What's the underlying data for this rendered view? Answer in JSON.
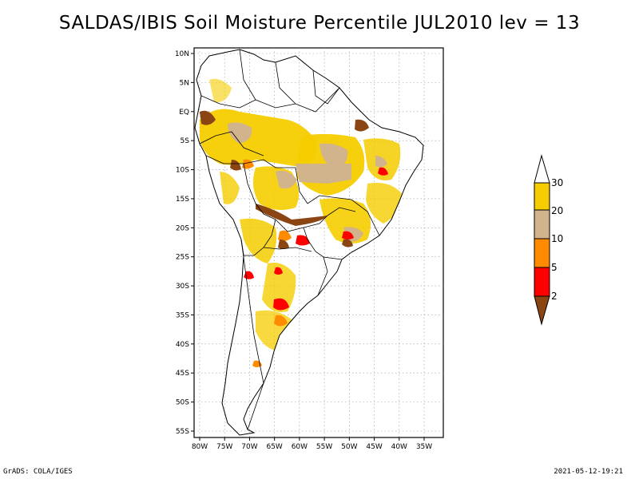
{
  "title": "SALDAS/IBIS Soil Moisture Percentile JUL2010 lev = 13",
  "map": {
    "lon_range": [
      -80,
      -30
    ],
    "lat_range": [
      -56,
      11
    ],
    "lat_ticks": [
      {
        "lat": 10,
        "label": "10N"
      },
      {
        "lat": 5,
        "label": "5N"
      },
      {
        "lat": 0,
        "label": "EQ"
      },
      {
        "lat": -5,
        "label": "5S"
      },
      {
        "lat": -10,
        "label": "10S"
      },
      {
        "lat": -15,
        "label": "15S"
      },
      {
        "lat": -20,
        "label": "20S"
      },
      {
        "lat": -25,
        "label": "25S"
      },
      {
        "lat": -30,
        "label": "30S"
      },
      {
        "lat": -35,
        "label": "35S"
      },
      {
        "lat": -40,
        "label": "40S"
      },
      {
        "lat": -45,
        "label": "45S"
      },
      {
        "lat": -50,
        "label": "50S"
      },
      {
        "lat": -55,
        "label": "55S"
      }
    ],
    "lon_ticks": [
      {
        "lon": -80,
        "label": "80W"
      },
      {
        "lon": -75,
        "label": "75W"
      },
      {
        "lon": -70,
        "label": "70W"
      },
      {
        "lon": -65,
        "label": "65W"
      },
      {
        "lon": -60,
        "label": "60W"
      },
      {
        "lon": -55,
        "label": "55W"
      },
      {
        "lon": -50,
        "label": "50W"
      },
      {
        "lon": -45,
        "label": "45W"
      },
      {
        "lon": -40,
        "label": "40W"
      },
      {
        "lon": -35,
        "label": "35W"
      }
    ]
  },
  "legend": {
    "labels": [
      "30",
      "20",
      "10",
      "5",
      "2"
    ],
    "colors": [
      "#ffffff",
      "#f5cd00",
      "#d2b48c",
      "#ff8c00",
      "#ff0000",
      "#8b4513"
    ]
  },
  "footer": {
    "left": "GrADS: COLA/IGES",
    "right": "2021-05-12-19:21"
  }
}
